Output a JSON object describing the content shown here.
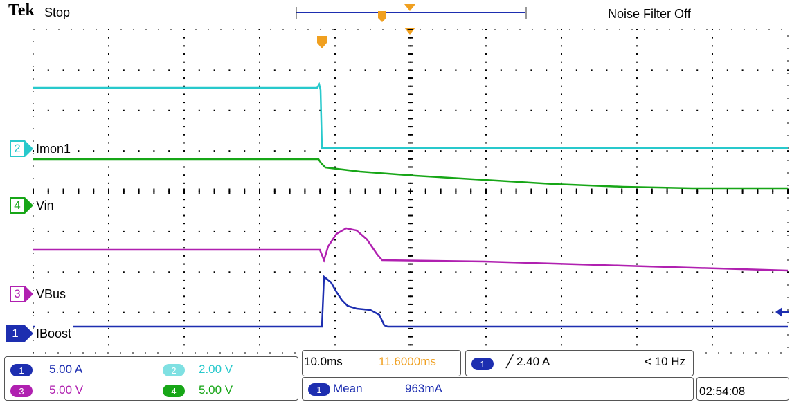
{
  "header": {
    "brand": "Tek",
    "status": "Stop",
    "noise_filter": "Noise Filter Off"
  },
  "colors": {
    "ch1": "#1d2eb0",
    "ch2": "#28c9cc",
    "ch3": "#b020b0",
    "ch4": "#17a617",
    "trigger": "#f0a020",
    "grid": "#000000"
  },
  "channels": [
    {
      "num": "2",
      "label": "Imon1",
      "color": "#28c9cc"
    },
    {
      "num": "4",
      "label": "Vin",
      "color": "#17a617"
    },
    {
      "num": "3",
      "label": "VBus",
      "color": "#b020b0"
    },
    {
      "num": "1",
      "label": "IBoost",
      "color": "#1d2eb0"
    }
  ],
  "scales": {
    "ch1": {
      "num": "1",
      "value": "5.00 A"
    },
    "ch2": {
      "num": "2",
      "value": "2.00 V"
    },
    "ch3": {
      "num": "3",
      "value": "5.00 V"
    },
    "ch4": {
      "num": "4",
      "value": "5.00 V"
    }
  },
  "timebase": {
    "per_div": "10.0ms",
    "position": "11.6000ms"
  },
  "trigger": {
    "channel": "1",
    "slope_level": "╱ 2.40 A",
    "freq": "< 10 Hz"
  },
  "measurement": {
    "channel": "1",
    "name": "Mean",
    "value": "963mA"
  },
  "clock": "02:54:08"
}
